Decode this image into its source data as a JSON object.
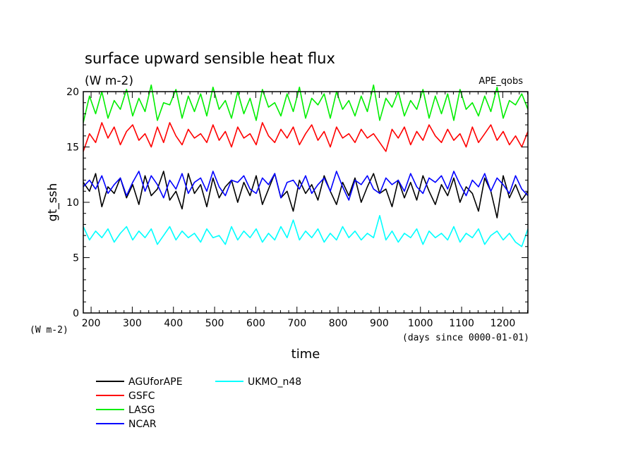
{
  "chart_data": {
    "type": "line",
    "title": "surface upward sensible heat flux",
    "subtitle": "(W m-2)",
    "tag": "APE_qobs",
    "xlabel": "time",
    "xunits": "(days since 0000-01-01)",
    "ylabel": "gt_ssh",
    "yunits": "(W m-2)",
    "xlim": [
      181,
      1261
    ],
    "ylim": [
      0,
      20
    ],
    "x_ticks": [
      200,
      300,
      400,
      500,
      600,
      700,
      800,
      900,
      1000,
      1100,
      1200
    ],
    "x_tick_labels": [
      "200",
      "300",
      "400",
      "500",
      "600",
      "700",
      "800",
      "900",
      "1000",
      "1100",
      "1200"
    ],
    "y_ticks": [
      0,
      5,
      10,
      15,
      20
    ],
    "y_tick_labels": [
      "0",
      "5",
      "10",
      "15",
      "20"
    ],
    "grid": false,
    "legend_position": "bottom-left",
    "x": [
      181,
      196,
      211,
      226,
      241,
      256,
      271,
      286,
      301,
      316,
      331,
      346,
      361,
      376,
      391,
      406,
      421,
      436,
      451,
      466,
      481,
      496,
      511,
      526,
      541,
      556,
      571,
      586,
      601,
      616,
      631,
      646,
      661,
      676,
      691,
      706,
      721,
      736,
      751,
      766,
      781,
      796,
      811,
      826,
      841,
      856,
      871,
      886,
      901,
      916,
      931,
      946,
      961,
      976,
      991,
      1006,
      1021,
      1036,
      1051,
      1066,
      1081,
      1096,
      1111,
      1126,
      1141,
      1156,
      1171,
      1186,
      1201,
      1216,
      1231,
      1246,
      1261
    ],
    "series": [
      {
        "name": "AGUforAPE",
        "color": "#000000",
        "values": [
          11.8,
          11.0,
          12.6,
          9.6,
          11.4,
          10.8,
          12.2,
          10.4,
          11.6,
          9.8,
          12.4,
          10.6,
          11.2,
          12.8,
          10.2,
          11.0,
          9.4,
          12.6,
          10.8,
          11.6,
          9.6,
          12.2,
          10.4,
          11.4,
          12.0,
          10.0,
          11.8,
          10.6,
          12.4,
          9.8,
          11.2,
          12.6,
          10.4,
          11.0,
          9.2,
          12.0,
          10.8,
          11.6,
          10.2,
          12.4,
          11.0,
          9.8,
          11.8,
          10.6,
          12.2,
          10.0,
          11.4,
          12.6,
          10.8,
          11.2,
          9.6,
          12.0,
          10.4,
          11.8,
          10.2,
          12.4,
          11.0,
          9.8,
          11.6,
          10.6,
          12.2,
          10.0,
          11.4,
          10.8,
          9.2,
          12.2,
          11.0,
          8.6,
          12.4,
          10.4,
          11.6,
          10.2,
          11.0
        ]
      },
      {
        "name": "GSFC",
        "color": "#ff0000",
        "values": [
          14.6,
          16.2,
          15.4,
          17.2,
          15.8,
          16.8,
          15.2,
          16.4,
          17.0,
          15.6,
          16.2,
          15.0,
          16.8,
          15.4,
          17.2,
          16.0,
          15.2,
          16.6,
          15.8,
          16.2,
          15.4,
          17.0,
          15.6,
          16.4,
          15.0,
          16.8,
          15.8,
          16.2,
          15.2,
          17.2,
          16.0,
          15.4,
          16.6,
          15.8,
          16.8,
          15.2,
          16.2,
          17.0,
          15.6,
          16.4,
          15.0,
          16.8,
          15.8,
          16.2,
          15.4,
          16.6,
          15.8,
          16.2,
          15.4,
          14.6,
          16.6,
          15.8,
          16.8,
          15.2,
          16.4,
          15.6,
          17.0,
          16.0,
          15.4,
          16.6,
          15.6,
          16.2,
          15.0,
          16.8,
          15.4,
          16.2,
          17.0,
          15.6,
          16.4,
          15.2,
          16.0,
          15.0,
          16.4
        ]
      },
      {
        "name": "LASG",
        "color": "#00ee00",
        "values": [
          17.2,
          19.6,
          18.0,
          20.0,
          17.6,
          19.2,
          18.4,
          20.2,
          17.8,
          19.4,
          18.2,
          20.6,
          17.4,
          19.0,
          18.8,
          20.2,
          17.6,
          19.6,
          18.2,
          19.8,
          17.8,
          20.4,
          18.4,
          19.2,
          17.6,
          20.0,
          18.0,
          19.4,
          17.4,
          20.2,
          18.6,
          19.0,
          17.8,
          19.8,
          18.2,
          20.4,
          17.6,
          19.4,
          18.8,
          19.8,
          17.6,
          20.0,
          18.4,
          19.2,
          17.8,
          19.6,
          18.2,
          20.6,
          17.4,
          19.4,
          18.6,
          20.0,
          17.8,
          19.2,
          18.4,
          20.2,
          17.6,
          19.6,
          18.0,
          19.8,
          17.4,
          20.2,
          18.4,
          19.0,
          17.8,
          19.6,
          18.2,
          20.4,
          17.6,
          19.2,
          18.8,
          19.8,
          18.4
        ]
      },
      {
        "name": "NCAR",
        "color": "#0000ff",
        "values": [
          11.4,
          12.0,
          11.2,
          12.4,
          10.8,
          11.6,
          12.2,
          10.6,
          11.8,
          12.8,
          11.0,
          12.4,
          11.6,
          10.4,
          12.0,
          11.2,
          12.6,
          10.8,
          11.8,
          12.2,
          11.0,
          12.8,
          11.4,
          10.6,
          12.0,
          11.8,
          12.4,
          11.2,
          10.8,
          12.2,
          11.6,
          12.6,
          10.4,
          11.8,
          12.0,
          11.2,
          12.4,
          10.8,
          11.6,
          12.2,
          11.0,
          12.8,
          11.4,
          10.2,
          12.0,
          11.6,
          12.4,
          11.2,
          10.8,
          12.2,
          11.6,
          12.0,
          11.0,
          12.6,
          11.4,
          10.8,
          12.2,
          11.8,
          12.4,
          11.2,
          12.8,
          11.6,
          10.6,
          12.0,
          11.4,
          12.6,
          11.0,
          12.2,
          11.6,
          10.8,
          12.4,
          11.2,
          10.6
        ]
      },
      {
        "name": "UKMO_n48",
        "color": "#00ffff",
        "values": [
          7.8,
          6.6,
          7.4,
          6.8,
          7.6,
          6.4,
          7.2,
          7.8,
          6.6,
          7.4,
          6.8,
          7.6,
          6.2,
          7.0,
          7.8,
          6.6,
          7.4,
          6.8,
          7.2,
          6.4,
          7.6,
          6.8,
          7.0,
          6.2,
          7.8,
          6.6,
          7.4,
          6.8,
          7.6,
          6.4,
          7.2,
          6.6,
          7.8,
          6.8,
          8.4,
          6.6,
          7.4,
          6.8,
          7.6,
          6.4,
          7.2,
          6.6,
          7.8,
          6.8,
          7.4,
          6.6,
          7.2,
          6.8,
          8.8,
          6.6,
          7.4,
          6.4,
          7.2,
          6.8,
          7.6,
          6.2,
          7.4,
          6.8,
          7.2,
          6.6,
          7.8,
          6.4,
          7.2,
          6.8,
          7.6,
          6.2,
          7.0,
          7.4,
          6.6,
          7.2,
          6.4,
          6.0,
          7.6
        ]
      }
    ]
  }
}
